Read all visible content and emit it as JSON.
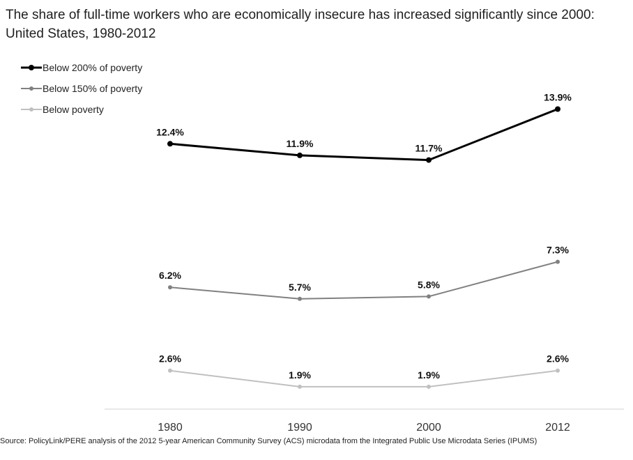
{
  "chart_data": {
    "type": "line",
    "title": "The share of full-time workers who are economically insecure has increased significantly since 2000: United States, 1980-2012",
    "categories": [
      "1980",
      "1990",
      "2000",
      "2012"
    ],
    "series": [
      {
        "name": "Below 200% of poverty",
        "color": "#000000",
        "values": [
          12.4,
          11.9,
          11.7,
          13.9
        ],
        "labels": [
          "12.4%",
          "11.9%",
          "11.7%",
          "13.9%"
        ]
      },
      {
        "name": "Below 150% of poverty",
        "color": "#808080",
        "values": [
          6.2,
          5.7,
          5.8,
          7.3
        ],
        "labels": [
          "6.2%",
          "5.7%",
          "5.8%",
          "7.3%"
        ]
      },
      {
        "name": "Below poverty",
        "color": "#c0c0c0",
        "values": [
          2.6,
          1.9,
          1.9,
          2.6
        ],
        "labels": [
          "2.6%",
          "1.9%",
          "1.9%",
          "2.6%"
        ]
      }
    ],
    "xlabel": "",
    "ylabel": "",
    "ylim": [
      0,
      15
    ],
    "grid": false,
    "legend": "top-left",
    "source": "Source: PolicyLink/PERE analysis of the 2012 5-year American Community Survey (ACS) microdata from the Integrated Public Use Microdata Series (IPUMS)"
  }
}
